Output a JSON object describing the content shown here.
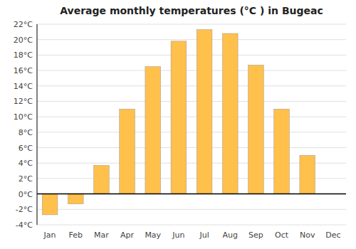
{
  "chart_data": {
    "type": "bar",
    "title": "Average monthly temperatures (°C ) in Bugeac",
    "categories": [
      "Jan",
      "Feb",
      "Mar",
      "Apr",
      "May",
      "Jun",
      "Jul",
      "Aug",
      "Sep",
      "Oct",
      "Nov",
      "Dec"
    ],
    "values": [
      -2.7,
      -1.3,
      3.7,
      11.0,
      16.5,
      19.8,
      21.3,
      20.8,
      16.7,
      11.0,
      5.0,
      0.0
    ],
    "color": "#FFC04C",
    "ylim": [
      -4,
      22
    ],
    "yticks": [
      {
        "value": -4,
        "label": "-4°C"
      },
      {
        "value": -2,
        "label": "-2°C"
      },
      {
        "value": 0,
        "label": "0°C"
      },
      {
        "value": 2,
        "label": "2°C"
      },
      {
        "value": 4,
        "label": "4°C"
      },
      {
        "value": 6,
        "label": "6°C"
      },
      {
        "value": 8,
        "label": "8°C"
      },
      {
        "value": 10,
        "label": "10°C"
      },
      {
        "value": 12,
        "label": "12°C"
      },
      {
        "value": 14,
        "label": "14°C"
      },
      {
        "value": 16,
        "label": "16°C"
      },
      {
        "value": 18,
        "label": "18°C"
      },
      {
        "value": 20,
        "label": "20°C"
      },
      {
        "value": 22,
        "label": "22°C"
      }
    ],
    "grid": true
  }
}
